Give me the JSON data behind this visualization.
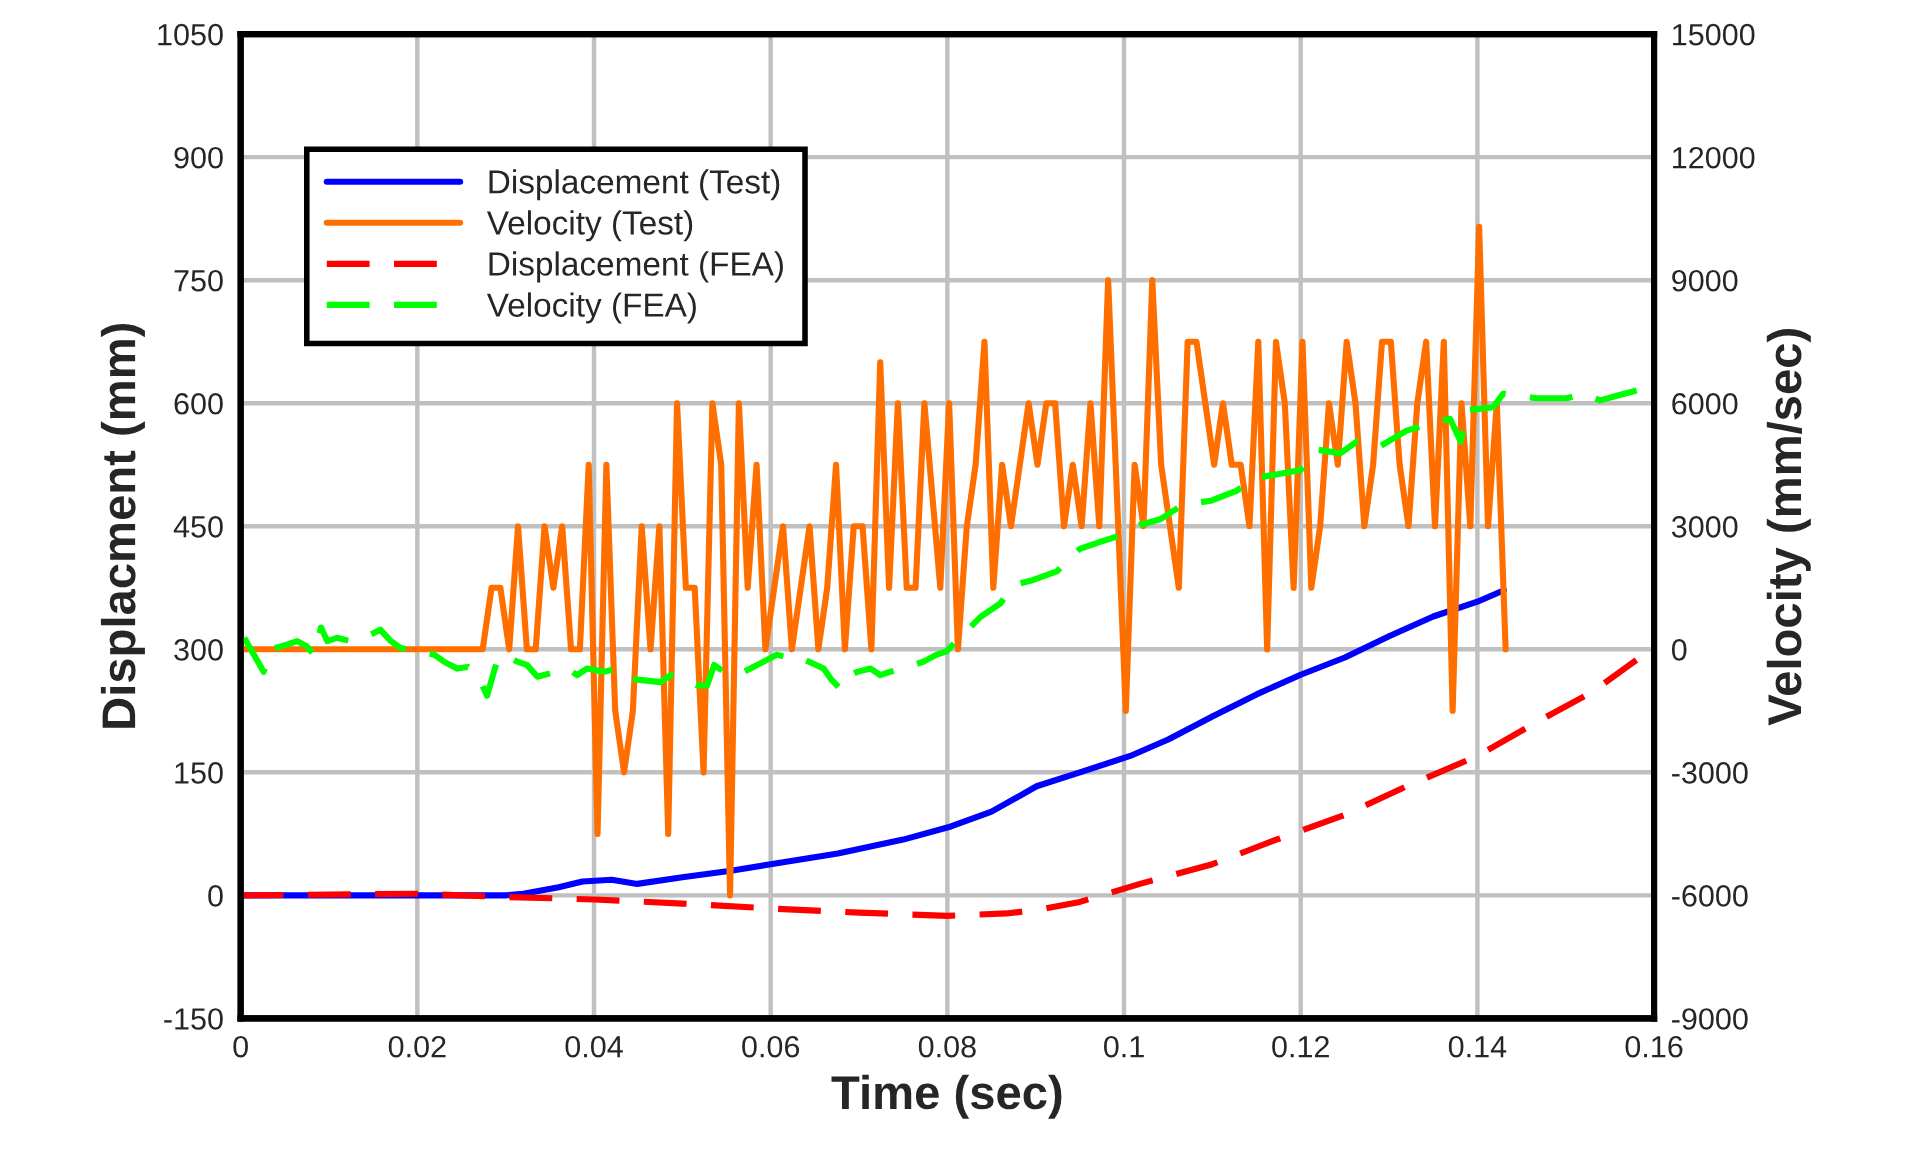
{
  "chart_data": {
    "type": "line",
    "xlabel": "Time (sec)",
    "ylabel": "Displacment (mm)",
    "y2label": "Velocity (mm/sec)",
    "xlim": [
      0,
      0.16
    ],
    "xticks": [
      0,
      0.02,
      0.04,
      0.06,
      0.08,
      0.1,
      0.12,
      0.14,
      0.16
    ],
    "ylim": [
      -150,
      1050
    ],
    "yticks": [
      -150,
      0,
      150,
      300,
      450,
      600,
      750,
      900,
      1050
    ],
    "y2lim": [
      -9000,
      15000
    ],
    "y2ticks": [
      -9000,
      -6000,
      -3000,
      0,
      3000,
      6000,
      9000,
      12000,
      15000
    ],
    "grid": true,
    "legend": "top left",
    "series": [
      {
        "name": "Displacement (Test)",
        "color": "#0000ff",
        "line_style": "solid",
        "x": [
          0,
          0.03,
          0.032,
          0.036,
          0.0387,
          0.042,
          0.0449,
          0.05,
          0.0555,
          0.06,
          0.0676,
          0.075,
          0.0804,
          0.085,
          0.0901,
          0.095,
          0.1007,
          0.105,
          0.11,
          0.115,
          0.12,
          0.125,
          0.13,
          0.135,
          0.14,
          0.143
        ],
        "values": [
          0,
          0,
          2,
          10,
          17,
          19,
          14,
          22,
          30,
          38,
          51,
          68,
          84,
          102,
          133,
          150,
          170,
          190,
          218,
          245,
          269,
          290,
          316,
          340,
          358,
          372
        ]
      },
      {
        "name": "Velocity (Test)",
        "color": "#ff6f00",
        "line_style": "solid",
        "axis": "y2",
        "x": [
          0,
          0.0274,
          0.0284,
          0.0294,
          0.0304,
          0.0314,
          0.0324,
          0.0334,
          0.0344,
          0.0354,
          0.0364,
          0.0374,
          0.0384,
          0.0394,
          0.0404,
          0.0414,
          0.0424,
          0.0434,
          0.0444,
          0.0454,
          0.0464,
          0.0474,
          0.0484,
          0.0494,
          0.0504,
          0.0514,
          0.0524,
          0.0534,
          0.0544,
          0.0554,
          0.0564,
          0.0574,
          0.0584,
          0.0594,
          0.0604,
          0.0614,
          0.0624,
          0.0634,
          0.0644,
          0.0654,
          0.0664,
          0.0674,
          0.0684,
          0.0694,
          0.0704,
          0.0714,
          0.0724,
          0.0734,
          0.0744,
          0.0754,
          0.0764,
          0.0774,
          0.0792,
          0.0802,
          0.0812,
          0.0822,
          0.0832,
          0.0842,
          0.0852,
          0.0862,
          0.0872,
          0.0882,
          0.0892,
          0.0902,
          0.0912,
          0.0922,
          0.0932,
          0.0942,
          0.0952,
          0.0962,
          0.0972,
          0.0982,
          0.1002,
          0.1012,
          0.1022,
          0.1032,
          0.1042,
          0.1052,
          0.1062,
          0.1072,
          0.1082,
          0.1092,
          0.1102,
          0.1112,
          0.1122,
          0.1132,
          0.1142,
          0.1152,
          0.1162,
          0.1172,
          0.1182,
          0.1192,
          0.1202,
          0.1212,
          0.1222,
          0.1232,
          0.1242,
          0.1252,
          0.1262,
          0.1272,
          0.1282,
          0.1292,
          0.1302,
          0.1312,
          0.1322,
          0.1332,
          0.1342,
          0.1352,
          0.1362,
          0.1372,
          0.1382,
          0.1392,
          0.1402,
          0.1412,
          0.1422,
          0.1432
        ],
        "values": [
          0,
          0,
          1500,
          1500,
          0,
          3000,
          0,
          0,
          3000,
          1500,
          3000,
          0,
          0,
          4500,
          -4500,
          4500,
          -1500,
          -3000,
          -1500,
          3000,
          0,
          3000,
          -4500,
          6000,
          1500,
          1500,
          -3000,
          6000,
          4500,
          -6000,
          6000,
          1500,
          4500,
          0,
          1500,
          3000,
          0,
          1500,
          3000,
          0,
          1500,
          4500,
          0,
          3000,
          3000,
          0,
          7000,
          1500,
          6000,
          1500,
          1500,
          6000,
          1500,
          6000,
          0,
          3000,
          4500,
          7500,
          1500,
          4500,
          3000,
          4500,
          6000,
          4500,
          6000,
          6000,
          3000,
          4500,
          3000,
          6000,
          3000,
          9000,
          -1500,
          4500,
          3000,
          9000,
          4500,
          3000,
          1500,
          7500,
          7500,
          6000,
          4500,
          6000,
          4500,
          4500,
          3000,
          7500,
          0,
          7500,
          6000,
          1500,
          7500,
          1500,
          3000,
          6000,
          4500,
          7500,
          6000,
          3000,
          4500,
          7500,
          7500,
          4500,
          3000,
          6000,
          7500,
          3000,
          7500,
          -1500,
          6000,
          3000,
          10300,
          3000,
          6000,
          0
        ]
      },
      {
        "name": "Displacement (FEA)",
        "color": "#ff0000",
        "line_style": "dashed",
        "x": [
          0,
          0.02,
          0.03,
          0.04,
          0.05,
          0.06,
          0.07,
          0.08,
          0.0867,
          0.09,
          0.095,
          0.1018,
          0.11,
          0.117,
          0.125,
          0.132,
          0.14,
          0.147,
          0.153,
          0.158
        ],
        "values": [
          0,
          2,
          -2,
          -5,
          -10,
          -16,
          -21,
          -25,
          -22,
          -18,
          -8,
          14,
          38,
          67,
          98,
          133,
          170,
          213,
          248,
          287
        ]
      },
      {
        "name": "Velocity (FEA)",
        "color": "#00ff00",
        "line_style": "dashed",
        "axis": "y2",
        "x": [
          0.0004,
          0.0015,
          0.0026,
          0.0034,
          0.0053,
          0.0064,
          0.0075,
          0.0083,
          0.0091,
          0.0098,
          0.0109,
          0.0124,
          0.014,
          0.0158,
          0.017,
          0.0181,
          0.0219,
          0.023,
          0.0245,
          0.0257,
          0.0268,
          0.0279,
          0.029,
          0.0298,
          0.0313,
          0.0324,
          0.0336,
          0.037,
          0.0381,
          0.0392,
          0.0411,
          0.0426,
          0.0441,
          0.0475,
          0.0487,
          0.0502,
          0.0517,
          0.0528,
          0.0536,
          0.0547,
          0.0562,
          0.0577,
          0.0592,
          0.0607,
          0.0622,
          0.063,
          0.066,
          0.0668,
          0.0679,
          0.069,
          0.0698,
          0.0713,
          0.0724,
          0.0735,
          0.075,
          0.0773,
          0.0788,
          0.0799,
          0.0818,
          0.0837,
          0.086,
          0.0875,
          0.0894,
          0.0924,
          0.095,
          0.0973,
          0.0996,
          0.1018,
          0.1041,
          0.1067,
          0.1098,
          0.1128,
          0.1147,
          0.1177,
          0.12,
          0.1218,
          0.1245,
          0.1264,
          0.129,
          0.132,
          0.135,
          0.1369,
          0.1381,
          0.1388,
          0.1418,
          0.1429,
          0.1467,
          0.1501,
          0.152,
          0.1539,
          0.1561,
          0.1584
        ],
        "values": [
          280,
          -130,
          -550,
          0,
          120,
          200,
          70,
          -130,
          530,
          200,
          280,
          200,
          280,
          480,
          200,
          30,
          -130,
          -300,
          -470,
          -430,
          -630,
          -1130,
          -300,
          -130,
          -300,
          -380,
          -670,
          -470,
          -630,
          -470,
          -550,
          -470,
          -720,
          -800,
          -630,
          -720,
          -880,
          -880,
          -380,
          -550,
          -630,
          -470,
          -300,
          -130,
          -220,
          -170,
          -470,
          -720,
          -970,
          -630,
          -550,
          -470,
          -630,
          -550,
          -470,
          -300,
          -130,
          -50,
          370,
          780,
          1120,
          1570,
          1670,
          1900,
          2450,
          2620,
          2780,
          3030,
          3170,
          3530,
          3620,
          3870,
          4170,
          4280,
          4370,
          4870,
          4780,
          5070,
          4950,
          5330,
          5530,
          5620,
          5070,
          5830,
          5900,
          6230,
          6120,
          6120,
          6230,
          6070,
          6200,
          6330
        ]
      }
    ]
  }
}
